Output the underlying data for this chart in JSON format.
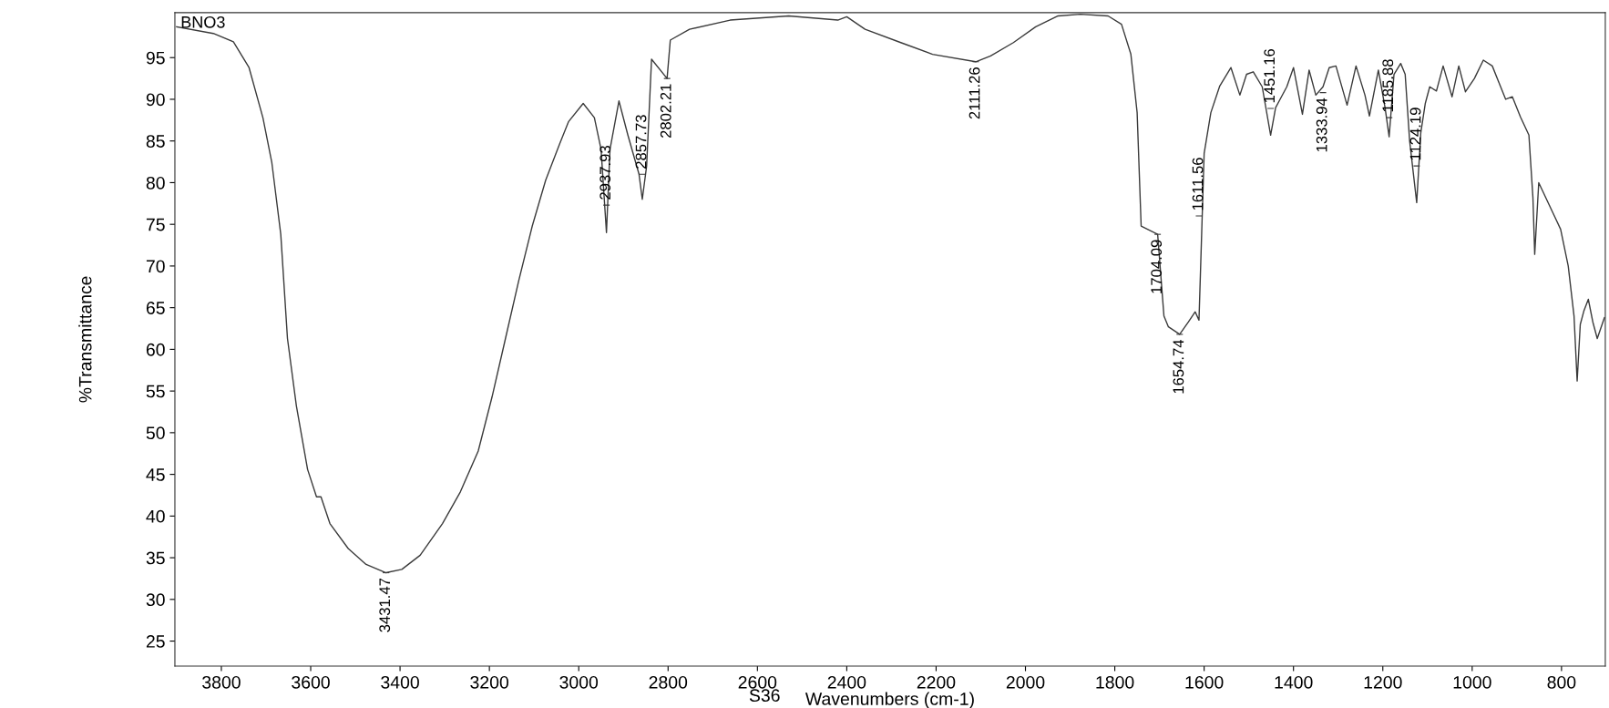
{
  "chart_data": {
    "type": "line",
    "xlabel": "Wavenumbers (cm-1)",
    "ylabel": "%Transmittance",
    "xlim": [
      3904,
      702
    ],
    "ylim": [
      22,
      100.4
    ],
    "xticks": [
      3800,
      3600,
      3400,
      3200,
      3000,
      2800,
      2600,
      2400,
      2200,
      2000,
      1800,
      1600,
      1400,
      1200,
      1000,
      800
    ],
    "yticks": [
      25,
      30,
      35,
      40,
      45,
      50,
      55,
      60,
      65,
      70,
      75,
      80,
      85,
      90,
      95
    ],
    "marker": "none",
    "line_style": "solid",
    "series": [
      {
        "color": "#3a3a3a",
        "x": [
          3900,
          3818,
          3773,
          3738,
          3707,
          3687,
          3667,
          3652,
          3632,
          3607,
          3587,
          3577,
          3557,
          3516,
          3476,
          3431.47,
          3396,
          3355,
          3305,
          3265,
          3225,
          3194,
          3164,
          3134,
          3104,
          3074,
          3043,
          3023,
          2990,
          2965,
          2950,
          2937.93,
          2930,
          2910,
          2890,
          2865,
          2857.73,
          2848,
          2837,
          2802.21,
          2795,
          2752,
          2661,
          2530,
          2420,
          2400,
          2359,
          2279,
          2208,
          2111.26,
          2078,
          2027,
          1977,
          1927,
          1877,
          1815,
          1785,
          1764,
          1750,
          1741,
          1704.09,
          1690,
          1680,
          1654.74,
          1635,
          1620,
          1611.56,
          1600,
          1585,
          1565,
          1540,
          1520,
          1505,
          1490,
          1470,
          1451.16,
          1440,
          1430,
          1415,
          1400,
          1380,
          1365,
          1350,
          1333.94,
          1320,
          1305,
          1280,
          1260,
          1240,
          1230,
          1210,
          1195,
          1185.88,
          1175,
          1160,
          1150,
          1140,
          1124.19,
          1115,
          1105,
          1095,
          1080,
          1065,
          1045,
          1030,
          1015,
          995,
          975,
          955,
          940,
          925,
          910,
          892,
          873,
          864,
          860,
          851,
          816,
          802,
          785,
          772,
          765,
          758,
          750,
          740,
          730,
          720,
          704
        ],
        "values": [
          98.7,
          97.9,
          96.9,
          93.8,
          87.8,
          82.4,
          73.8,
          61.3,
          53.2,
          45.6,
          42.3,
          42.3,
          39.1,
          36.1,
          34.2,
          33.2,
          33.6,
          35.3,
          39.1,
          42.9,
          47.8,
          54.3,
          61.3,
          68.3,
          74.8,
          80.3,
          84.6,
          87.3,
          89.5,
          87.8,
          84.0,
          74.0,
          84.0,
          89.8,
          85.7,
          81.0,
          78.0,
          82.0,
          94.8,
          92.5,
          97.1,
          98.4,
          99.5,
          100.0,
          99.5,
          99.9,
          98.4,
          96.8,
          95.4,
          94.5,
          95.2,
          96.8,
          98.7,
          100.0,
          100.2,
          100.0,
          99.0,
          95.4,
          88.4,
          74.8,
          73.8,
          64.0,
          62.7,
          61.8,
          63.3,
          64.5,
          63.5,
          83.5,
          88.4,
          91.6,
          93.8,
          90.5,
          93.0,
          93.3,
          91.5,
          85.7,
          89.0,
          90.0,
          91.5,
          93.8,
          88.2,
          93.5,
          90.5,
          91.5,
          93.8,
          94.0,
          89.3,
          94.0,
          90.5,
          88.0,
          93.5,
          89.0,
          85.5,
          93.0,
          94.3,
          93.0,
          85.0,
          77.6,
          86.0,
          89.5,
          91.5,
          91.0,
          94.0,
          90.3,
          94.0,
          90.9,
          92.5,
          94.7,
          94.0,
          92.0,
          90.0,
          90.3,
          87.9,
          85.7,
          78.2,
          71.4,
          80.0,
          76.0,
          74.4,
          70.0,
          64.0,
          56.2,
          63.0,
          64.6,
          66.0,
          63.3,
          61.3,
          63.8
        ]
      }
    ],
    "annotations": [
      "BNO3",
      "S36",
      {
        "text": "3431.47",
        "x": 3431.47,
        "y": 33.2
      },
      {
        "text": "2937.93",
        "x": 2937.93,
        "y": 77.3
      },
      {
        "text": "2857.73",
        "x": 2857.73,
        "y": 81
      },
      {
        "text": "2802.21",
        "x": 2802.21,
        "y": 92.5
      },
      {
        "text": "2111.26",
        "x": 2111.26,
        "y": 94.5
      },
      {
        "text": "1704.09",
        "x": 1704.09,
        "y": 73.8
      },
      {
        "text": "1654.74",
        "x": 1654.74,
        "y": 61.8
      },
      {
        "text": "1611.56",
        "x": 1611.56,
        "y": 76
      },
      {
        "text": "1451.16",
        "x": 1451.16,
        "y": 88.9
      },
      {
        "text": "1333.94",
        "x": 1333.94,
        "y": 90.8
      },
      {
        "text": "1185.88",
        "x": 1185.88,
        "y": 87.8
      },
      {
        "text": "1124.19",
        "x": 1124.19,
        "y": 82
      }
    ]
  }
}
